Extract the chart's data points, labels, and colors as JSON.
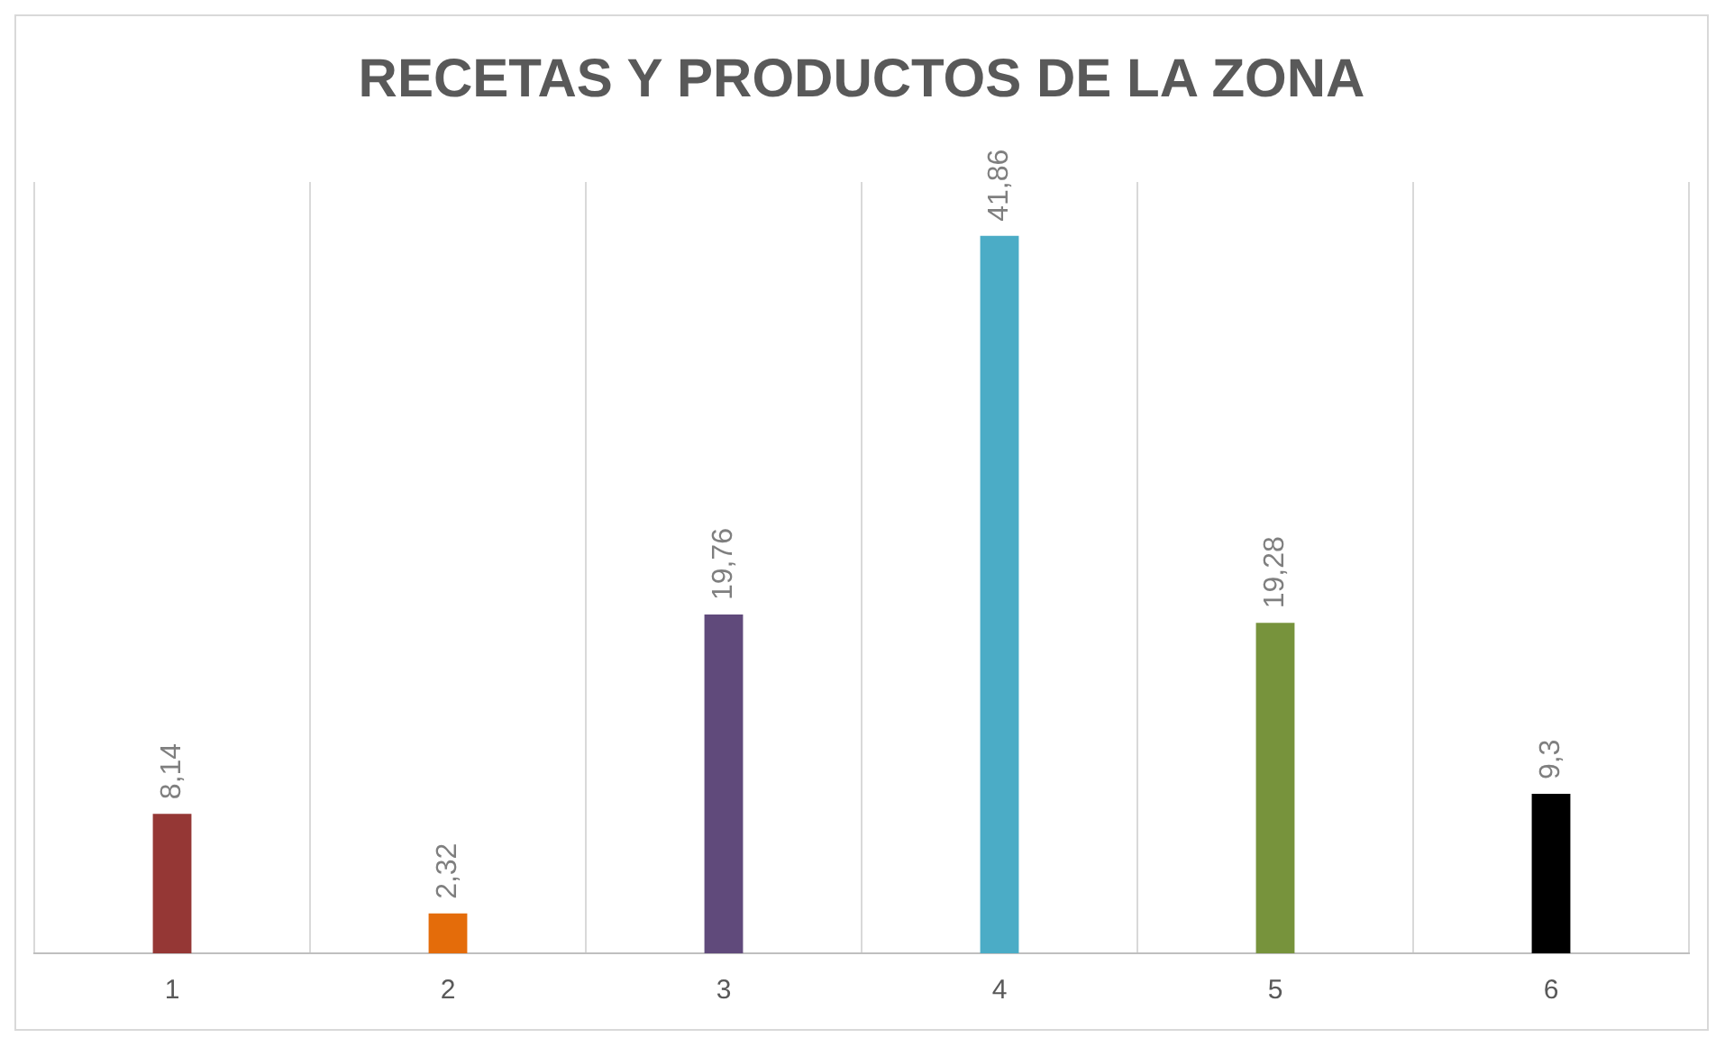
{
  "chart_data": {
    "type": "bar",
    "title": "RECETAS Y PRODUCTOS DE LA ZONA",
    "categories": [
      "1",
      "2",
      "3",
      "4",
      "5",
      "6"
    ],
    "values": [
      8.14,
      2.32,
      19.76,
      41.86,
      19.28,
      9.3
    ],
    "value_labels": [
      "8,14",
      "2,32",
      "19,76",
      "41,86",
      "19,28",
      "9,3"
    ],
    "colors": [
      "#953735",
      "#e46c0a",
      "#604a7b",
      "#4bacc6",
      "#77933c",
      "#000000"
    ],
    "grid": "x",
    "legend": false
  }
}
